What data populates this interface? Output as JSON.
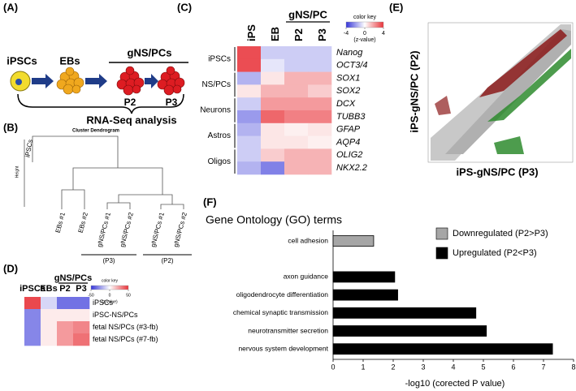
{
  "panels": {
    "A": {
      "label": "(A)",
      "stages": [
        "iPSCs",
        "EBs"
      ],
      "group": "gNS/PCs",
      "passages": [
        "P2",
        "P3"
      ],
      "caption": "RNA-Seq analysis"
    },
    "B": {
      "label": "(B)",
      "title": "Cluster Dendrogram",
      "ylabel": "Height",
      "leaves": [
        "iPSCs",
        "EBs #1",
        "EBs #2",
        "gNS/PCs #1",
        "gNS/PCs #2",
        "gNS/PCs #1",
        "gNS/PCs #2"
      ],
      "groups": [
        "(P3)",
        "(P2)"
      ]
    },
    "C": {
      "label": "(C)"
    },
    "D": {
      "label": "(D)"
    },
    "E": {
      "label": "(E)",
      "xlabel": "iPS-gNS/PC (P3)",
      "ylabel": "iPS-gNS/PC (P2)"
    },
    "F": {
      "label": "(F)"
    }
  },
  "chart_data": [
    {
      "type": "heatmap",
      "columns": [
        "iPS",
        "EB",
        "P2",
        "P3"
      ],
      "column_group": "gNS/PC",
      "row_groups": [
        {
          "name": "iPSCs",
          "rows": [
            "Nanog",
            "OCT3/4"
          ]
        },
        {
          "name": "NS/PCs",
          "rows": [
            "SOX1",
            "SOX2"
          ]
        },
        {
          "name": "Neurons",
          "rows": [
            "DCX",
            "TUBB3"
          ]
        },
        {
          "name": "Astros",
          "rows": [
            "GFAP",
            "AQP4"
          ]
        },
        {
          "name": "Oligos",
          "rows": [
            "OLIG2",
            "NKX2.2"
          ]
        }
      ],
      "values": [
        [
          3.5,
          -1,
          -1,
          -1
        ],
        [
          3.5,
          -0.5,
          -1,
          -1
        ],
        [
          -1.5,
          0.5,
          1.5,
          1.5
        ],
        [
          0.5,
          1.5,
          1.5,
          1
        ],
        [
          -1,
          2,
          2,
          2
        ],
        [
          -2,
          3,
          2.5,
          2.5
        ],
        [
          -1.5,
          0.5,
          0.3,
          0.5
        ],
        [
          -1,
          0.5,
          0.5,
          0.3
        ],
        [
          -1,
          1,
          1.5,
          1.5
        ],
        [
          -1.5,
          -2.5,
          1.5,
          1.5
        ]
      ],
      "colorkey": {
        "title": "color key",
        "label": "(z-value)",
        "lim": [
          -4,
          4
        ],
        "ticks": [
          -4,
          0,
          4
        ]
      },
      "colors": [
        "#3535d8",
        "#ffffff",
        "#e8343a"
      ]
    },
    {
      "type": "heatmap",
      "columns": [
        "iPSCs",
        "EBs",
        "P2",
        "P3"
      ],
      "column_group": "gNS/PCs",
      "rows": [
        "iPSCs",
        "iPSC-NS/PCs",
        "fetal NS/PCs (#3-fb)",
        "fetal NS/PCs (#7-fb)"
      ],
      "values": [
        [
          45,
          -10,
          -35,
          -35
        ],
        [
          -30,
          5,
          5,
          5
        ],
        [
          -30,
          5,
          25,
          30
        ],
        [
          -30,
          5,
          25,
          35
        ]
      ],
      "colorkey": {
        "title": "color key",
        "label": "(z-value)",
        "lim": [
          -50,
          50
        ],
        "ticks": [
          -50,
          0,
          50
        ]
      },
      "colors": [
        "#3535d8",
        "#ffffff",
        "#e8343a"
      ]
    },
    {
      "type": "barh",
      "title": "Gene Ontology (GO) terms",
      "xlabel": "-log10 (corected P value)",
      "categories": [
        "cell adhesion",
        null,
        "axon guidance",
        "oligodendrocyte differentiation",
        "chemical synaptic transmission",
        "neurotransmitter secretion",
        "nervous system development"
      ],
      "series": [
        {
          "name": "Downregulated (P2>P3)",
          "color": "#a6a6a6",
          "values": [
            1.35,
            null,
            null,
            null,
            null,
            null,
            null
          ]
        },
        {
          "name": "Upregulated (P2<P3)",
          "color": "#000000",
          "values": [
            null,
            null,
            2.05,
            2.15,
            4.75,
            5.1,
            7.3
          ]
        }
      ],
      "xlim": [
        0,
        8
      ],
      "xticks": [
        0,
        1,
        2,
        3,
        4,
        5,
        6,
        7,
        8
      ]
    }
  ]
}
